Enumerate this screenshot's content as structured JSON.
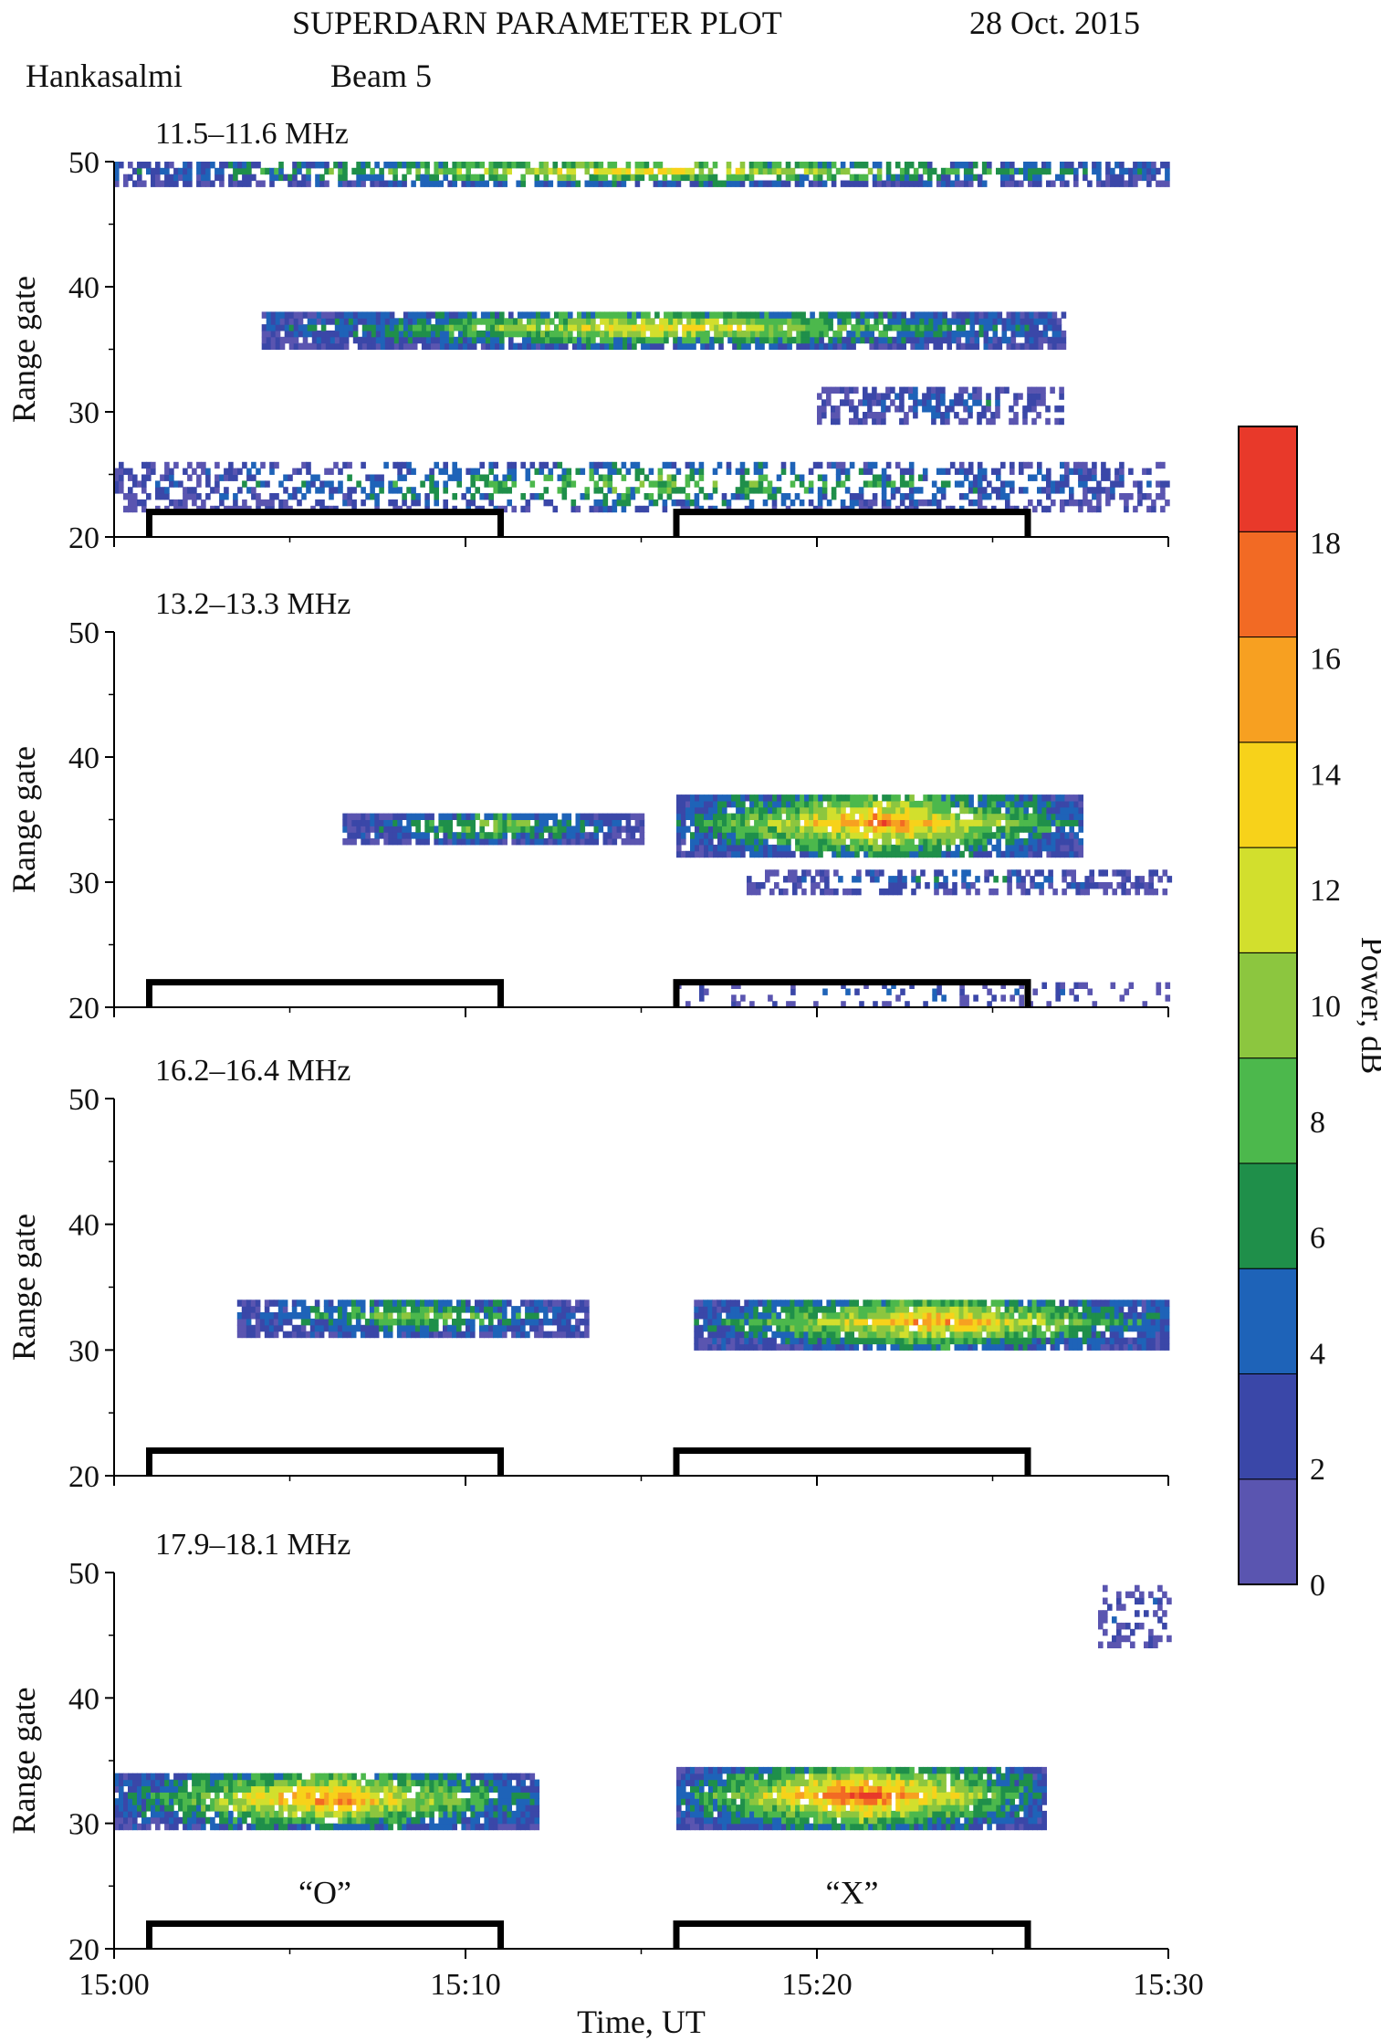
{
  "header": {
    "title": "SUPERDARN PARAMETER PLOT",
    "date": "28 Oct. 2015",
    "station": "Hankasalmi",
    "beam": "Beam 5"
  },
  "chart_data": {
    "type": "heatmap",
    "x_label": "Time, UT",
    "x_ticks": [
      "15:00",
      "15:10",
      "15:20",
      "15:30"
    ],
    "x_range_min": [
      0,
      30
    ],
    "y_label": "Range gate",
    "y_ticks": [
      20,
      30,
      40,
      50
    ],
    "y_range": [
      20,
      50
    ],
    "colorbar": {
      "label": "Power, dB",
      "ticks": [
        0,
        2,
        4,
        6,
        8,
        10,
        12,
        14,
        16,
        18
      ],
      "range": [
        0,
        20
      ],
      "colors": [
        "#5a55b0",
        "#3a47a8",
        "#1e63b8",
        "#1f8f4a",
        "#4cb84c",
        "#8cc63f",
        "#d2df2d",
        "#f7d21a",
        "#f7a021",
        "#f26a24",
        "#e8392a"
      ]
    },
    "heating_periods": [
      {
        "label": "O",
        "start_min": 1,
        "end_min": 11
      },
      {
        "label": "X",
        "start_min": 16,
        "end_min": 26
      }
    ],
    "panels": [
      {
        "frequency": "11.5–11.6 MHz",
        "bands": [
          {
            "t0": 0,
            "t1": 30,
            "g0": 48,
            "g1": 50,
            "fill": 0.7,
            "pmax": 13
          },
          {
            "t0": 4.2,
            "t1": 27,
            "g0": 35,
            "g1": 38,
            "fill": 0.9,
            "pmax": 13
          },
          {
            "t0": 20,
            "t1": 27,
            "g0": 29,
            "g1": 32,
            "fill": 0.55,
            "pmax": 5
          },
          {
            "t0": 0,
            "t1": 30,
            "g0": 22,
            "g1": 26,
            "fill": 0.45,
            "pmax": 9
          }
        ]
      },
      {
        "frequency": "13.2–13.3 MHz",
        "bands": [
          {
            "t0": 6.5,
            "t1": 15,
            "g0": 33,
            "g1": 35.5,
            "fill": 0.85,
            "pmax": 10
          },
          {
            "t0": 16,
            "t1": 27.5,
            "g0": 32,
            "g1": 37,
            "fill": 0.92,
            "pmax": 17
          },
          {
            "t0": 18,
            "t1": 30,
            "g0": 29,
            "g1": 31,
            "fill": 0.5,
            "pmax": 5
          },
          {
            "t0": 16,
            "t1": 30,
            "g0": 20,
            "g1": 22,
            "fill": 0.2,
            "pmax": 4
          }
        ]
      },
      {
        "frequency": "16.2–16.4 MHz",
        "bands": [
          {
            "t0": 3.5,
            "t1": 13.5,
            "g0": 31,
            "g1": 34,
            "fill": 0.85,
            "pmax": 10
          },
          {
            "t0": 16.5,
            "t1": 30,
            "g0": 30,
            "g1": 34,
            "fill": 0.93,
            "pmax": 16
          }
        ]
      },
      {
        "frequency": "17.9–18.1 MHz",
        "bands": [
          {
            "t0": 0,
            "t1": 12,
            "g0": 29.5,
            "g1": 34,
            "fill": 0.92,
            "pmax": 17
          },
          {
            "t0": 16,
            "t1": 26.5,
            "g0": 29.5,
            "g1": 34.5,
            "fill": 0.95,
            "pmax": 19
          },
          {
            "t0": 28,
            "t1": 30,
            "g0": 44,
            "g1": 49,
            "fill": 0.3,
            "pmax": 4
          }
        ]
      }
    ]
  }
}
